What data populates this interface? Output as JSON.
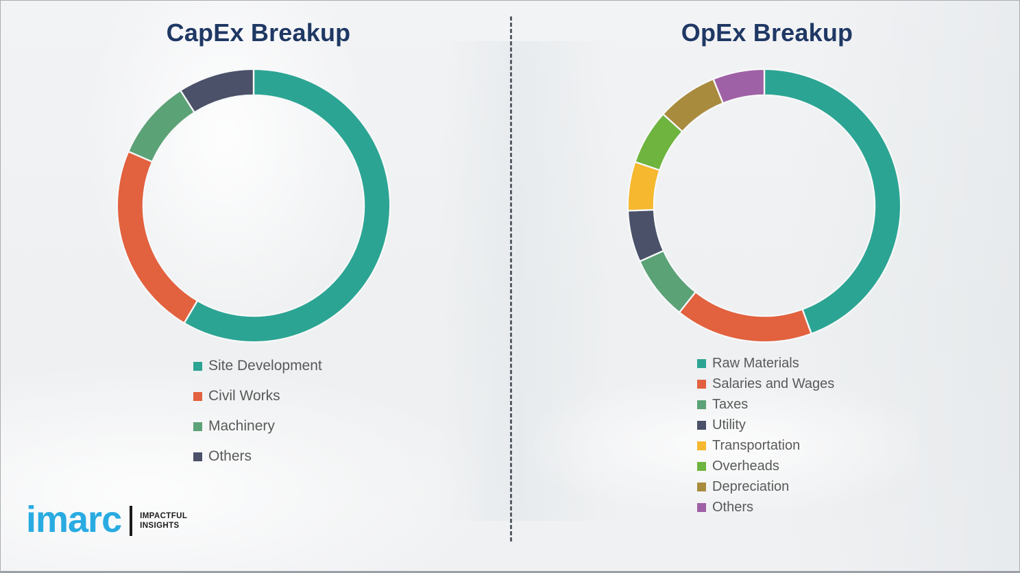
{
  "page": {
    "background_color": "#eef0f1",
    "title_color": "#1f3864",
    "legend_text_color": "#595959",
    "divider_style": "vertical dashed line"
  },
  "chart_data": [
    {
      "type": "pie",
      "subtype": "donut",
      "title": "CapEx Breakup",
      "categories": [
        "Site Development",
        "Civil Works",
        "Machinery",
        "Others"
      ],
      "values": [
        58.5,
        23,
        9.5,
        9
      ],
      "value_unit": "percent-of-ring (estimated from arc angles; no numeric labels shown)",
      "colors": [
        "#2ca493",
        "#e2613e",
        "#5ca277",
        "#4a5168"
      ],
      "start_angle_deg": 0,
      "direction": "clockwise",
      "legend_position": "below-left",
      "data_labels_shown": false
    },
    {
      "type": "pie",
      "subtype": "donut",
      "title": "OpEx Breakup",
      "categories": [
        "Raw Materials",
        "Salaries and Wages",
        "Taxes",
        "Utility",
        "Transportation",
        "Overheads",
        "Depreciation",
        "Others"
      ],
      "values": [
        44.4,
        16.3,
        7.6,
        6.1,
        5.8,
        6.5,
        7.2,
        6.1
      ],
      "value_unit": "percent-of-ring (estimated from arc angles; no numeric labels shown)",
      "colors": [
        "#2ca493",
        "#e2613e",
        "#5ca277",
        "#4a5168",
        "#f5b82e",
        "#6eb43f",
        "#a98b3e",
        "#9f61a6"
      ],
      "start_angle_deg": 0,
      "direction": "clockwise",
      "legend_position": "below-left",
      "data_labels_shown": false
    }
  ],
  "logo": {
    "word": "imarc",
    "tagline_line1": "IMPACTFUL",
    "tagline_line2": "INSIGHTS",
    "brand_color": "#29abe2"
  }
}
